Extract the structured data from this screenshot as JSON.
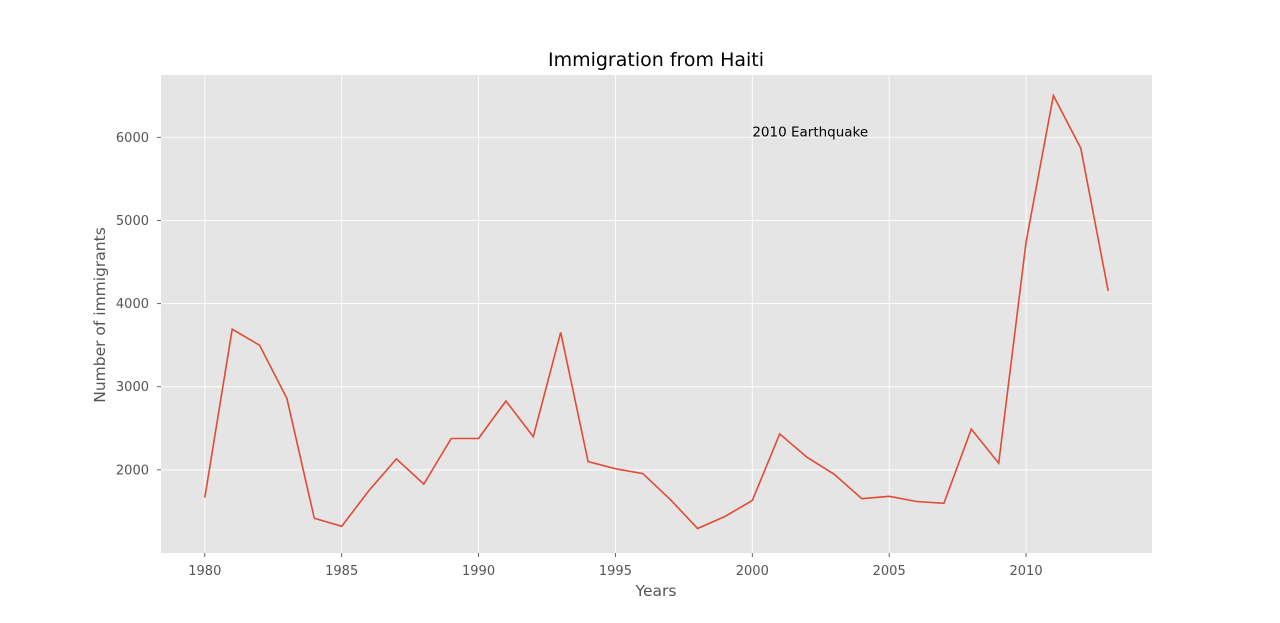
{
  "chart_data": {
    "type": "line",
    "title": "Immigration from Haiti",
    "xlabel": "Years",
    "ylabel": "Number of immigrants",
    "grid": true,
    "xlim": [
      1978.4,
      2014.6
    ],
    "ylim": [
      1000,
      6750
    ],
    "xticks": [
      1980,
      1985,
      1990,
      1995,
      2000,
      2005,
      2010
    ],
    "yticks": [
      2000,
      3000,
      4000,
      5000,
      6000
    ],
    "colors": {
      "line": "#E24A33",
      "plot_bg": "#E5E5E5",
      "grid": "#FFFFFF"
    },
    "series": [
      {
        "x": [
          1980,
          1981,
          1982,
          1983,
          1984,
          1985,
          1986,
          1987,
          1988,
          1989,
          1990,
          1991,
          1992,
          1993,
          1994,
          1995,
          1996,
          1997,
          1998,
          1999,
          2000,
          2001,
          2002,
          2003,
          2004,
          2005,
          2006,
          2007,
          2008,
          2009,
          2010,
          2011,
          2012,
          2013
        ],
        "values": [
          1666,
          3692,
          3498,
          2860,
          1418,
          1321,
          1753,
          2132,
          1829,
          2377,
          2379,
          2829,
          2399,
          3655,
          2100,
          2014,
          1955,
          1645,
          1295,
          1439,
          1631,
          2433,
          2151,
          1945,
          1653,
          1682,
          1619,
          1598,
          2491,
          2080,
          4744,
          6503,
          5868,
          4152
        ]
      }
    ],
    "annotations": [
      {
        "text": "2010 Earthquake",
        "x": 2000,
        "y": 6000
      }
    ]
  }
}
